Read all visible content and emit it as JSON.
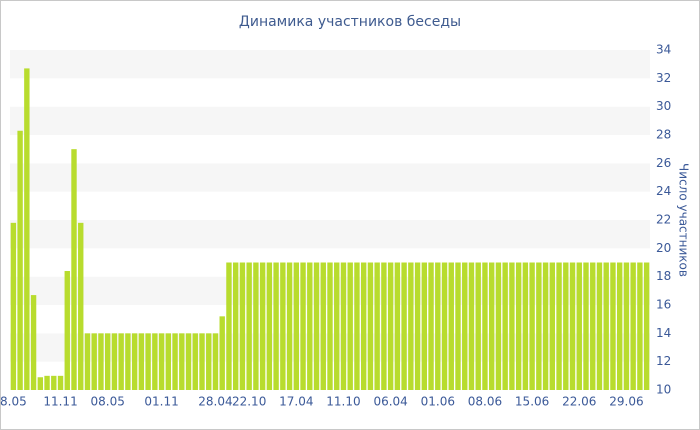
{
  "chart_data": {
    "type": "bar",
    "title": "Динамика участников беседы",
    "y_axis_label": "Число участников",
    "categories": [
      "8.05",
      null,
      null,
      null,
      null,
      null,
      null,
      "11.11",
      null,
      null,
      null,
      null,
      null,
      null,
      "08.05",
      null,
      null,
      null,
      null,
      null,
      null,
      null,
      "01.11",
      null,
      null,
      null,
      null,
      null,
      null,
      null,
      "28.04",
      null,
      null,
      null,
      null,
      "22.10",
      null,
      null,
      null,
      null,
      null,
      null,
      "17.04",
      null,
      null,
      null,
      null,
      null,
      null,
      "11.10",
      null,
      null,
      null,
      null,
      null,
      null,
      "06.04",
      null,
      null,
      null,
      null,
      null,
      null,
      "01.06",
      null,
      null,
      null,
      null,
      null,
      null,
      "08.06",
      null,
      null,
      null,
      null,
      null,
      null,
      "15.06",
      null,
      null,
      null,
      null,
      null,
      null,
      "22.06",
      null,
      null,
      null,
      null,
      null,
      null,
      "29.06",
      null,
      null,
      null
    ],
    "values": [
      21.8,
      28.3,
      32.7,
      16.7,
      10.9,
      11,
      11,
      11,
      18.4,
      27,
      21.8,
      14,
      14,
      14,
      14,
      14,
      14,
      14,
      14,
      14,
      14,
      14,
      14,
      14,
      14,
      14,
      14,
      14,
      14,
      14,
      14,
      15.2,
      19,
      19,
      19,
      19,
      19,
      19,
      19,
      19,
      19,
      19,
      19,
      19,
      19,
      19,
      19,
      19,
      19,
      19,
      19,
      19,
      19,
      19,
      19,
      19,
      19,
      19,
      19,
      19,
      19,
      19,
      19,
      19,
      19,
      19,
      19,
      19,
      19,
      19,
      19,
      19,
      19,
      19,
      19,
      19,
      19,
      19,
      19,
      19,
      19,
      19,
      19,
      19,
      19,
      19,
      19,
      19,
      19,
      19,
      19,
      19,
      19,
      19,
      19
    ],
    "color": "#b8dc2e",
    "ylim": [
      10,
      34
    ],
    "yticks": [
      10,
      12,
      14,
      16,
      18,
      20,
      22,
      24,
      26,
      28,
      30,
      32,
      34
    ],
    "y_axis_side": "right",
    "grid": true
  }
}
